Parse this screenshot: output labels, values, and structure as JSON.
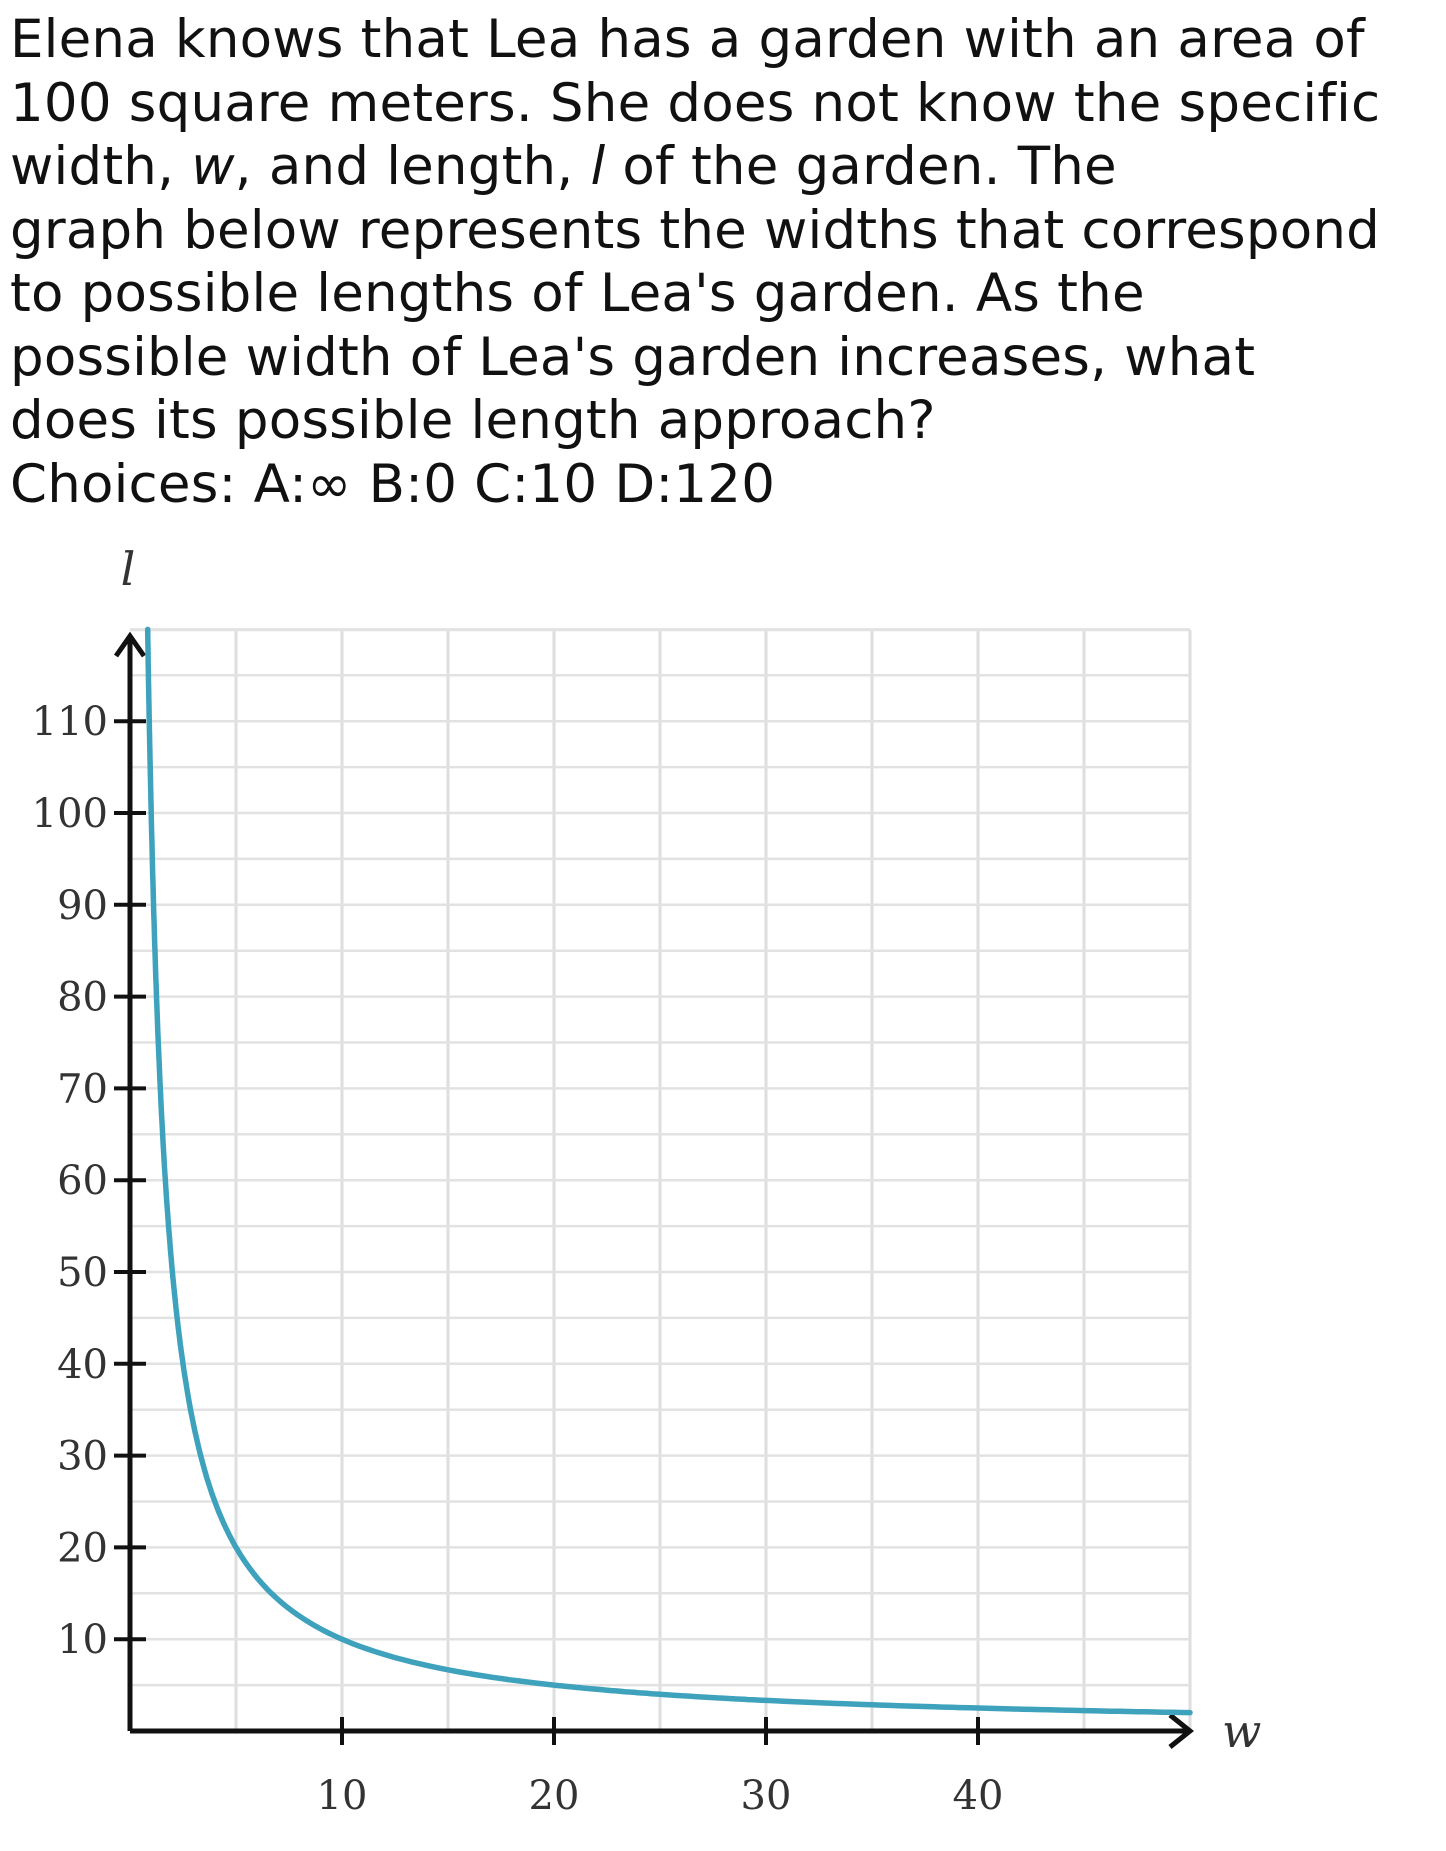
{
  "question": {
    "lines": [
      [
        "Elena knows that Lea has a garden with an area of"
      ],
      [
        "100 square meters. She does not know the specific"
      ],
      [
        "width, ",
        {
          "italic": "w"
        },
        ", and length, ",
        {
          "italic": "l"
        },
        " of the garden. The"
      ],
      [
        "graph below represents the widths that correspond"
      ],
      [
        "to possible lengths of Lea's garden. As the"
      ],
      [
        "possible width of Lea's garden increases, what"
      ],
      [
        "does its possible length approach?"
      ]
    ],
    "choices": "Choices: A:∞   B:0   C:10   D:120"
  },
  "chart_data": {
    "type": "line",
    "xlabel": "w",
    "ylabel": "l",
    "xlim": [
      0,
      50
    ],
    "ylim": [
      0,
      120
    ],
    "x_ticks": [
      10,
      20,
      30,
      40
    ],
    "y_ticks": [
      10,
      20,
      30,
      40,
      50,
      60,
      70,
      80,
      90,
      100,
      110
    ],
    "grid": true,
    "series": [
      {
        "function": "l = 100 / w",
        "color": "#3ea2bd",
        "points": [
          [
            0.833,
            120
          ],
          [
            1,
            100
          ],
          [
            1.25,
            80
          ],
          [
            2,
            50
          ],
          [
            2.5,
            40
          ],
          [
            4,
            25
          ],
          [
            5,
            20
          ],
          [
            10,
            10
          ],
          [
            20,
            5
          ],
          [
            25,
            4
          ],
          [
            30,
            3.33
          ],
          [
            40,
            2.5
          ],
          [
            50,
            2
          ]
        ]
      }
    ]
  }
}
